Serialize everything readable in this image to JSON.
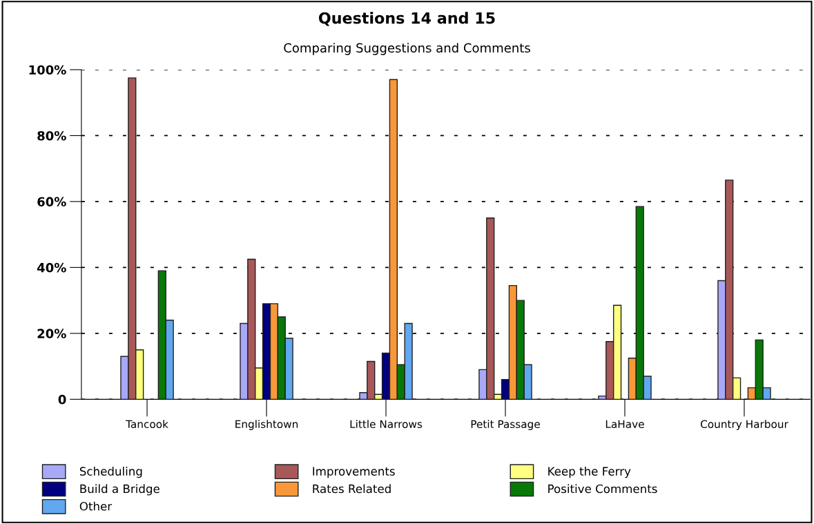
{
  "chart_data": {
    "type": "bar",
    "title": "Questions 14 and 15",
    "subtitle": "Comparing Suggestions and Comments",
    "categories": [
      "Tancook",
      "Englishtown",
      "Little Narrows",
      "Petit Passage",
      "LaHave",
      "Country Harbour"
    ],
    "series": [
      {
        "name": "Scheduling",
        "color": "#a8a8f8",
        "values": [
          13,
          23,
          2,
          9,
          1,
          36
        ]
      },
      {
        "name": "Improvements",
        "color": "#a85858",
        "values": [
          97.5,
          42.5,
          11.5,
          55,
          17.5,
          66.5
        ]
      },
      {
        "name": "Keep the Ferry",
        "color": "#ffff80",
        "values": [
          15,
          9.5,
          1.5,
          1.5,
          28.5,
          6.5
        ]
      },
      {
        "name": "Build a Bridge",
        "color": "#000080",
        "values": [
          null,
          29,
          14,
          6,
          null,
          null
        ]
      },
      {
        "name": "Rates Related",
        "color": "#f89838",
        "values": [
          null,
          29,
          97,
          34.5,
          12.5,
          3.5
        ]
      },
      {
        "name": "Positive Comments",
        "color": "#087808",
        "values": [
          39,
          25,
          10.5,
          30,
          58.5,
          18
        ]
      },
      {
        "name": "Other",
        "color": "#60a8f0",
        "values": [
          24,
          18.5,
          23,
          10.5,
          7,
          3.5
        ]
      }
    ],
    "ylim": [
      0,
      100
    ],
    "yticks": [
      0,
      {
        "value": 20,
        "label": "20%"
      },
      {
        "value": 40,
        "label": "40%"
      },
      {
        "value": 60,
        "label": "60%"
      },
      {
        "value": 80,
        "label": "80%"
      },
      {
        "value": 100,
        "label": "100%"
      }
    ],
    "grid": "y",
    "legend": "bottom"
  }
}
